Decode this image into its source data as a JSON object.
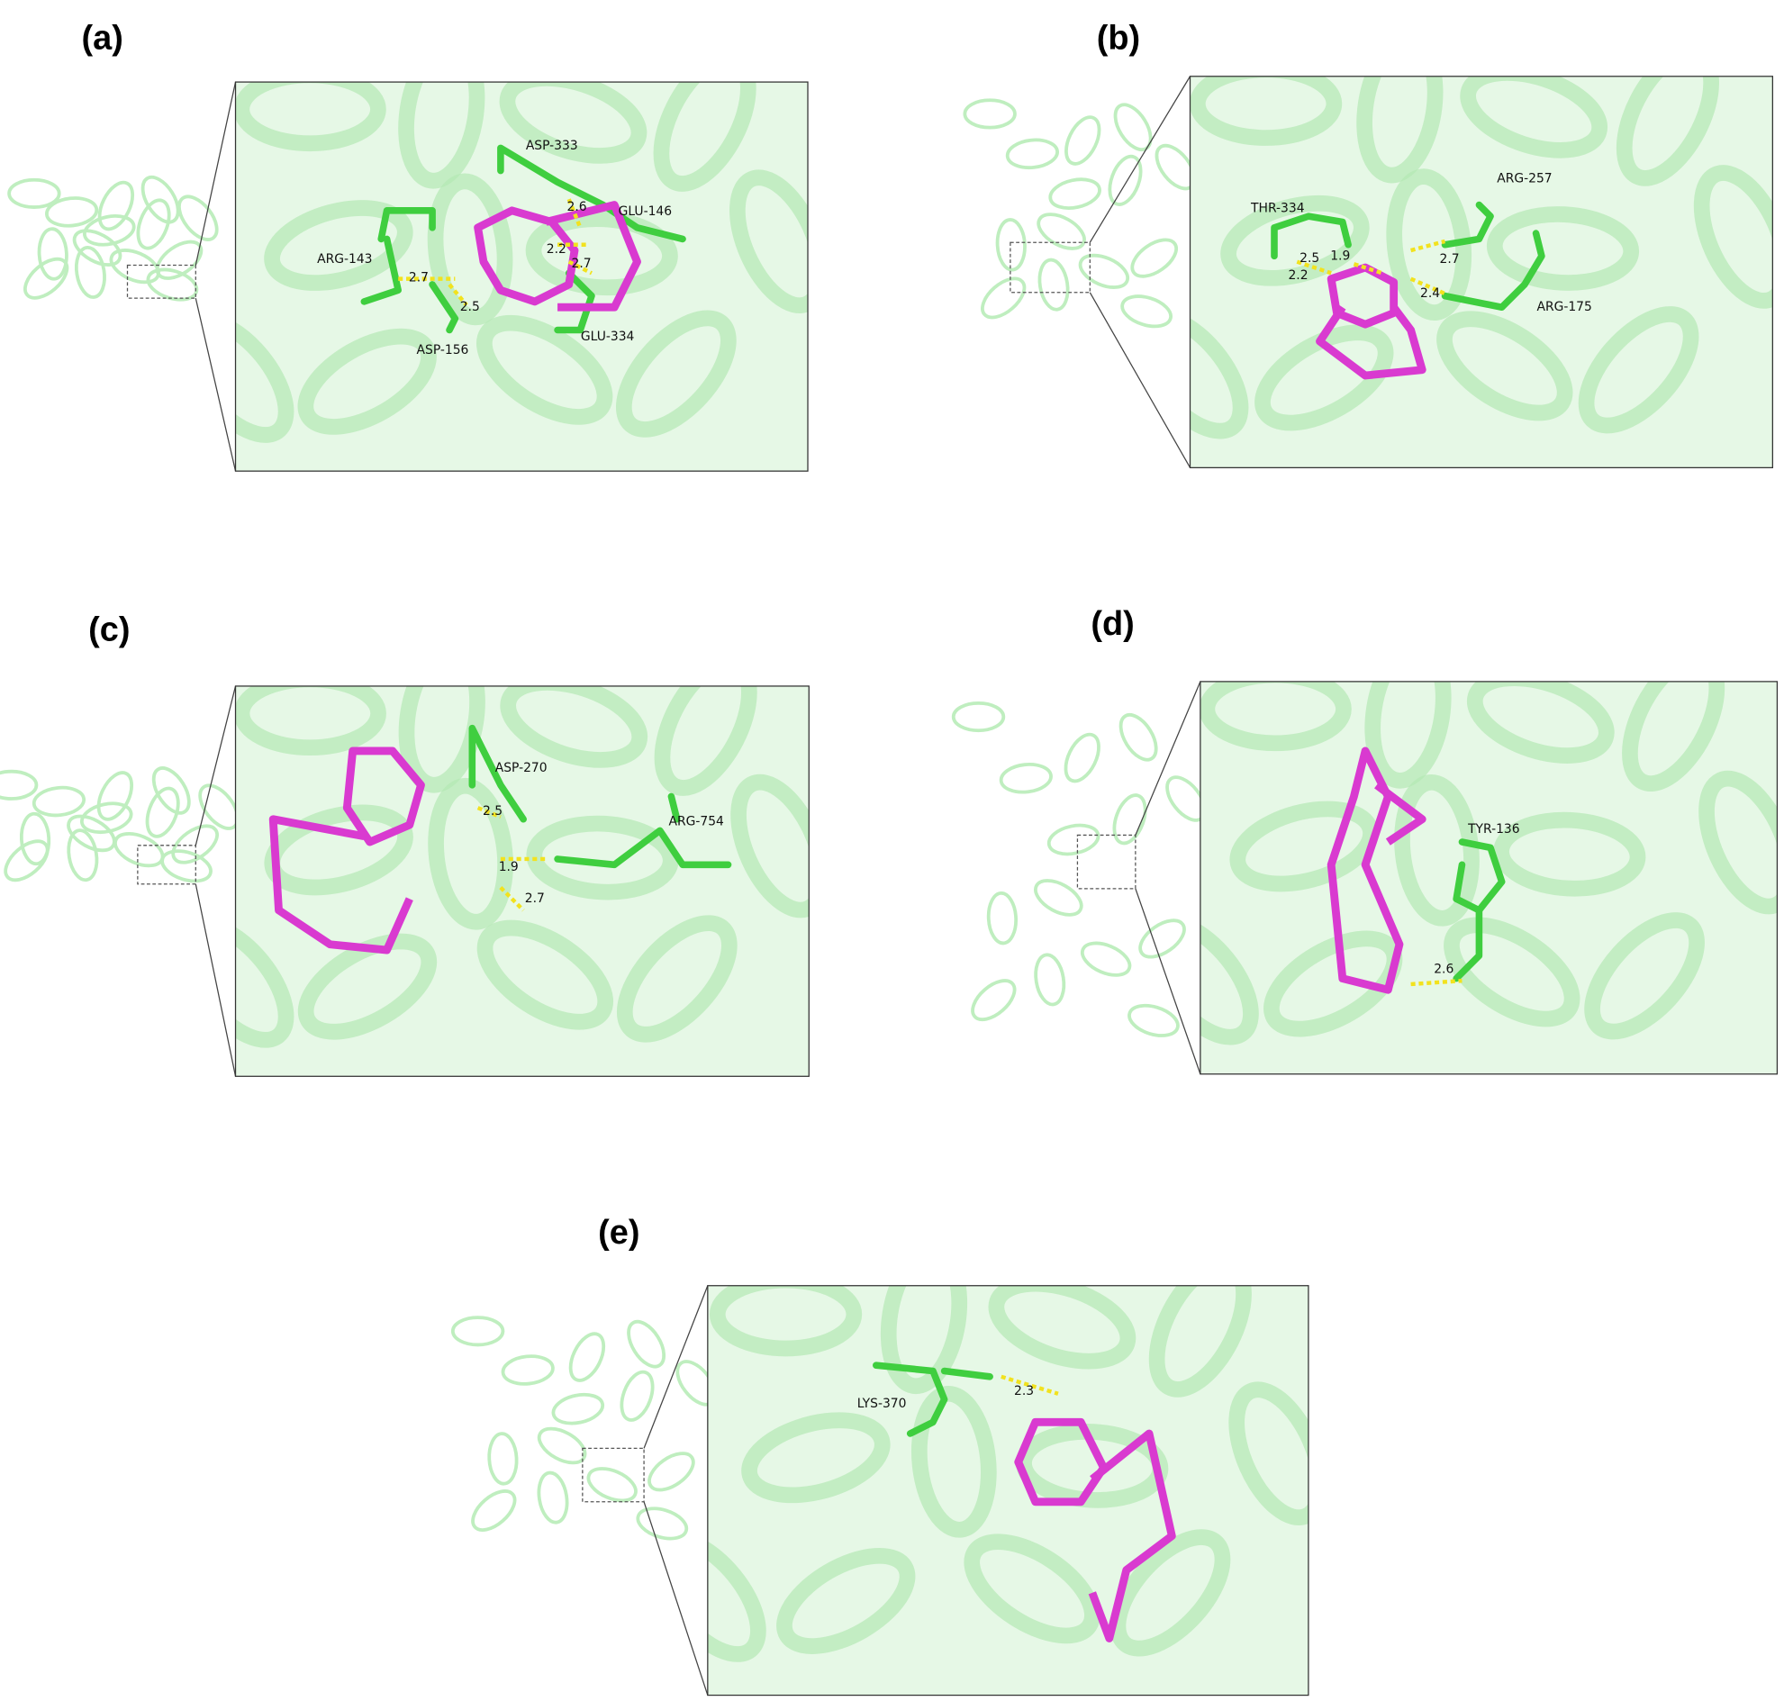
{
  "panels": [
    {
      "label": "(a)",
      "residues": [
        "ASP-333",
        "GLU-146",
        "ARG-143",
        "ASP-156",
        "GLU-334"
      ],
      "distances": [
        "2.6",
        "2.2",
        "2.7",
        "2.7",
        "2.5"
      ]
    },
    {
      "label": "(b)",
      "residues": [
        "THR-334",
        "ARG-257",
        "ARG-175"
      ],
      "distances": [
        "2.5",
        "1.9",
        "2.2",
        "2.7",
        "2.4"
      ]
    },
    {
      "label": "(c)",
      "residues": [
        "ASP-270",
        "ARG-754"
      ],
      "distances": [
        "2.5",
        "1.9",
        "2.7"
      ]
    },
    {
      "label": "(d)",
      "residues": [
        "TYR-136"
      ],
      "distances": [
        "2.6"
      ]
    },
    {
      "label": "(e)",
      "residues": [
        "LYS-370"
      ],
      "distances": [
        "2.3"
      ]
    }
  ]
}
